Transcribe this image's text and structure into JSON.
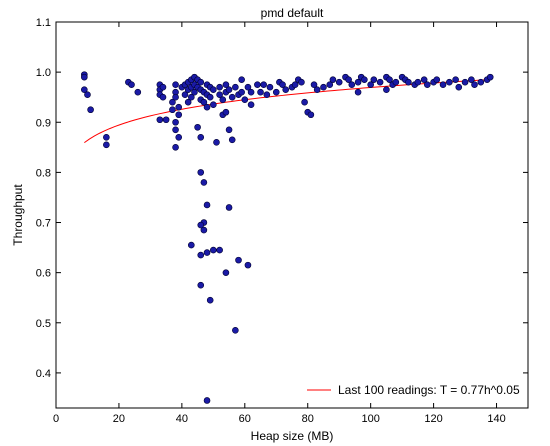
{
  "chart_data": {
    "type": "scatter",
    "title": "pmd default",
    "xlabel": "Heap size (MB)",
    "ylabel": "Throughput",
    "xlim": [
      0,
      150
    ],
    "ylim": [
      0.33,
      1.1
    ],
    "xticks": [
      0,
      20,
      40,
      60,
      80,
      100,
      120,
      140
    ],
    "yticks": [
      0.4,
      0.5,
      0.6,
      0.7,
      0.8,
      0.9,
      1.0,
      1.1
    ],
    "xtick_labels": [
      "0",
      "20",
      "40",
      "60",
      "80",
      "100",
      "120",
      "140"
    ],
    "ytick_labels": [
      "0.4",
      "0.5",
      "0.6",
      "0.7",
      "0.8",
      "0.9",
      "1.0",
      "1.1"
    ],
    "grid": false,
    "legend_position": "bottom-right",
    "colors": {
      "points": "#1a1aa6",
      "point_edge": "#000033",
      "fit": "#ff0000"
    },
    "series": [
      {
        "kind": "scatter",
        "points": [
          [
            9,
            0.995
          ],
          [
            9,
            0.99
          ],
          [
            9,
            0.965
          ],
          [
            10,
            0.955
          ],
          [
            11,
            0.925
          ],
          [
            16,
            0.87
          ],
          [
            16,
            0.855
          ],
          [
            23,
            0.98
          ],
          [
            24,
            0.975
          ],
          [
            26,
            0.96
          ],
          [
            33,
            0.975
          ],
          [
            33,
            0.965
          ],
          [
            33,
            0.955
          ],
          [
            34,
            0.97
          ],
          [
            34,
            0.95
          ],
          [
            33,
            0.905
          ],
          [
            35,
            0.905
          ],
          [
            37,
            0.94
          ],
          [
            37,
            0.925
          ],
          [
            38,
            0.975
          ],
          [
            38,
            0.96
          ],
          [
            38,
            0.95
          ],
          [
            39,
            0.93
          ],
          [
            38,
            0.9
          ],
          [
            38,
            0.885
          ],
          [
            39,
            0.87
          ],
          [
            38,
            0.85
          ],
          [
            39,
            0.915
          ],
          [
            40,
            0.97
          ],
          [
            41,
            0.975
          ],
          [
            41,
            0.955
          ],
          [
            42,
            0.98
          ],
          [
            42,
            0.965
          ],
          [
            42,
            0.94
          ],
          [
            43,
            0.985
          ],
          [
            43,
            0.97
          ],
          [
            43,
            0.95
          ],
          [
            44,
            0.99
          ],
          [
            44,
            0.975
          ],
          [
            44,
            0.96
          ],
          [
            45,
            0.985
          ],
          [
            45,
            0.97
          ],
          [
            46,
            0.98
          ],
          [
            46,
            0.965
          ],
          [
            46,
            0.945
          ],
          [
            47,
            0.96
          ],
          [
            47,
            0.94
          ],
          [
            48,
            0.975
          ],
          [
            48,
            0.955
          ],
          [
            49,
            0.97
          ],
          [
            49,
            0.95
          ],
          [
            50,
            0.965
          ],
          [
            50,
            0.935
          ],
          [
            52,
            0.97
          ],
          [
            52,
            0.955
          ],
          [
            53,
            0.945
          ],
          [
            54,
            0.975
          ],
          [
            54,
            0.96
          ],
          [
            55,
            0.965
          ],
          [
            56,
            0.95
          ],
          [
            57,
            0.97
          ],
          [
            58,
            0.955
          ],
          [
            59,
            0.985
          ],
          [
            59,
            0.96
          ],
          [
            60,
            0.945
          ],
          [
            61,
            0.97
          ],
          [
            62,
            0.935
          ],
          [
            64,
            0.975
          ],
          [
            65,
            0.96
          ],
          [
            66,
            0.975
          ],
          [
            67,
            0.955
          ],
          [
            68,
            0.97
          ],
          [
            70,
            0.96
          ],
          [
            71,
            0.98
          ],
          [
            72,
            0.975
          ],
          [
            73,
            0.965
          ],
          [
            75,
            0.97
          ],
          [
            76,
            0.975
          ],
          [
            77,
            0.985
          ],
          [
            78,
            0.98
          ],
          [
            79,
            0.94
          ],
          [
            80,
            0.92
          ],
          [
            81,
            0.915
          ],
          [
            82,
            0.975
          ],
          [
            83,
            0.965
          ],
          [
            85,
            0.97
          ],
          [
            87,
            0.975
          ],
          [
            88,
            0.985
          ],
          [
            90,
            0.98
          ],
          [
            92,
            0.99
          ],
          [
            93,
            0.985
          ],
          [
            94,
            0.975
          ],
          [
            96,
            0.98
          ],
          [
            97,
            0.99
          ],
          [
            98,
            0.985
          ],
          [
            100,
            0.975
          ],
          [
            101,
            0.985
          ],
          [
            103,
            0.98
          ],
          [
            105,
            0.99
          ],
          [
            106,
            0.985
          ],
          [
            107,
            0.975
          ],
          [
            108,
            0.98
          ],
          [
            110,
            0.99
          ],
          [
            111,
            0.985
          ],
          [
            112,
            0.98
          ],
          [
            114,
            0.975
          ],
          [
            115,
            0.98
          ],
          [
            117,
            0.985
          ],
          [
            118,
            0.975
          ],
          [
            120,
            0.98
          ],
          [
            121,
            0.985
          ],
          [
            123,
            0.975
          ],
          [
            125,
            0.98
          ],
          [
            127,
            0.985
          ],
          [
            128,
            0.97
          ],
          [
            130,
            0.98
          ],
          [
            132,
            0.985
          ],
          [
            133,
            0.975
          ],
          [
            135,
            0.98
          ],
          [
            137,
            0.985
          ],
          [
            138,
            0.99
          ],
          [
            96,
            0.96
          ],
          [
            105,
            0.965
          ],
          [
            62,
            0.96
          ],
          [
            48,
            0.93
          ],
          [
            46,
            0.8
          ],
          [
            47,
            0.78
          ],
          [
            48,
            0.735
          ],
          [
            47,
            0.7
          ],
          [
            46,
            0.695
          ],
          [
            47,
            0.685
          ],
          [
            43,
            0.655
          ],
          [
            46,
            0.635
          ],
          [
            48,
            0.64
          ],
          [
            50,
            0.645
          ],
          [
            52,
            0.645
          ],
          [
            54,
            0.6
          ],
          [
            55,
            0.73
          ],
          [
            58,
            0.625
          ],
          [
            61,
            0.615
          ],
          [
            49,
            0.545
          ],
          [
            46,
            0.575
          ],
          [
            57,
            0.485
          ],
          [
            48,
            0.345
          ],
          [
            45,
            0.89
          ],
          [
            46,
            0.87
          ],
          [
            51,
            0.86
          ],
          [
            55,
            0.885
          ],
          [
            56,
            0.865
          ],
          [
            53,
            0.915
          ],
          [
            54,
            0.92
          ]
        ]
      },
      {
        "kind": "line",
        "name": "Last 100 readings: T = 0.77h^0.05",
        "coef": 0.77,
        "exponent": 0.05,
        "x_range": [
          9,
          138
        ]
      }
    ]
  }
}
